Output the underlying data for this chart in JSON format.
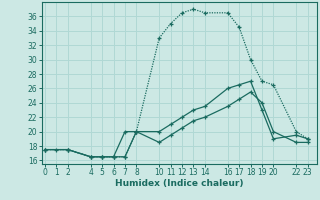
{
  "xlabel": "Humidex (Indice chaleur)",
  "bg_color": "#cce8e4",
  "grid_color": "#b0d8d4",
  "line_color": "#1a6b60",
  "series": [
    {
      "x": [
        0,
        1,
        2,
        4,
        5,
        6,
        7,
        8,
        10,
        11,
        12,
        13,
        14,
        16,
        17,
        18,
        19,
        20,
        22,
        23
      ],
      "y": [
        17.5,
        17.5,
        17.5,
        16.5,
        16.5,
        16.5,
        16.5,
        20,
        33,
        35,
        36.5,
        37,
        36.5,
        36.5,
        34.5,
        30,
        27,
        26.5,
        20,
        19
      ],
      "linestyle": "dotted",
      "marker": "+"
    },
    {
      "x": [
        0,
        2,
        4,
        5,
        6,
        7,
        8,
        10,
        11,
        12,
        13,
        14,
        16,
        17,
        18,
        19,
        20,
        22,
        23
      ],
      "y": [
        17.5,
        17.5,
        16.5,
        16.5,
        16.5,
        20,
        20,
        20,
        21,
        22,
        23,
        23.5,
        26,
        26.5,
        27,
        23,
        19,
        19.5,
        19
      ],
      "linestyle": "solid",
      "marker": "+"
    },
    {
      "x": [
        0,
        2,
        4,
        5,
        6,
        7,
        8,
        10,
        11,
        12,
        13,
        14,
        16,
        17,
        18,
        19,
        20,
        22,
        23
      ],
      "y": [
        17.5,
        17.5,
        16.5,
        16.5,
        16.5,
        16.5,
        20,
        18.5,
        19.5,
        20.5,
        21.5,
        22,
        23.5,
        24.5,
        25.5,
        24,
        20,
        18.5,
        18.5
      ],
      "linestyle": "solid",
      "marker": "+"
    }
  ],
  "xlim": [
    -0.3,
    23.8
  ],
  "ylim": [
    15.5,
    38
  ],
  "xticks": [
    0,
    1,
    2,
    4,
    5,
    6,
    7,
    8,
    10,
    11,
    12,
    13,
    14,
    16,
    17,
    18,
    19,
    20,
    22,
    23
  ],
  "yticks": [
    16,
    18,
    20,
    22,
    24,
    26,
    28,
    30,
    32,
    34,
    36
  ]
}
